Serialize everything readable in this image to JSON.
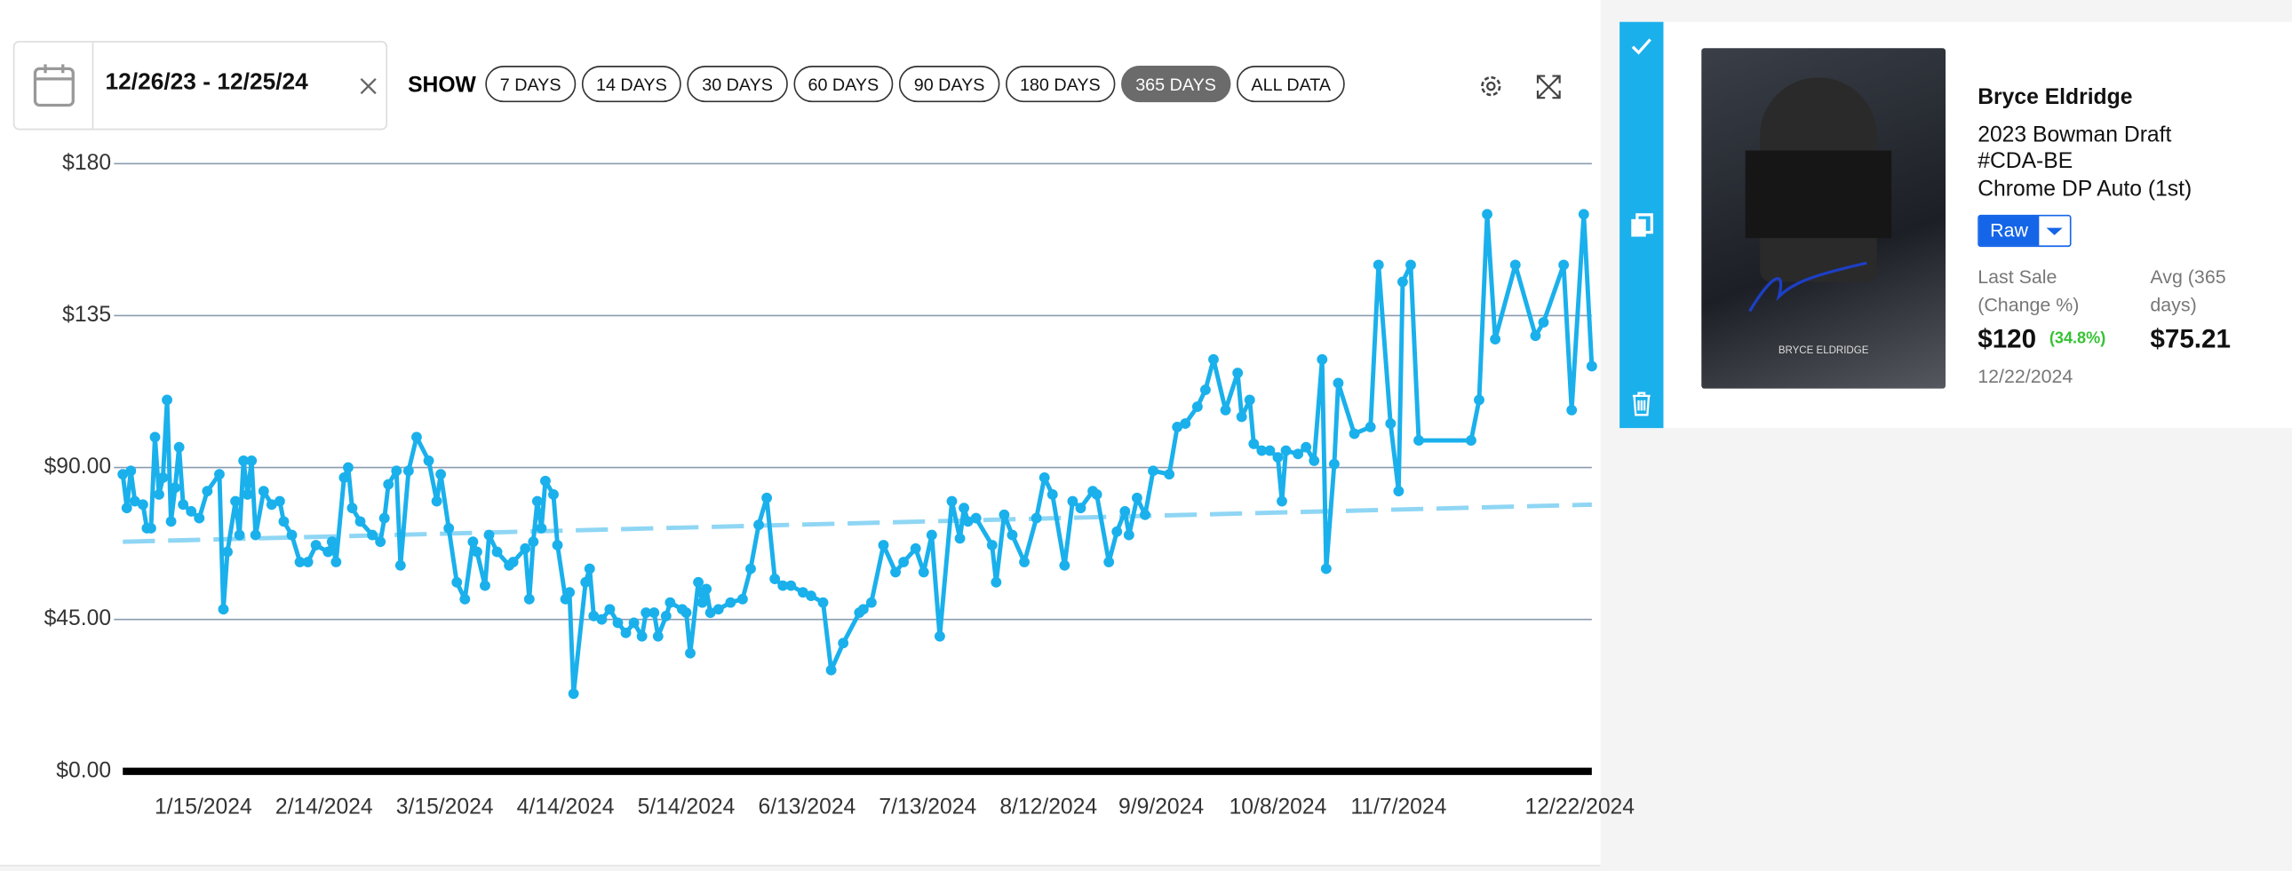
{
  "toolbar": {
    "date_range": "12/26/23 - 12/25/24",
    "show_label": "SHOW",
    "ranges": [
      "7 DAYS",
      "14 DAYS",
      "30 DAYS",
      "60 DAYS",
      "90 DAYS",
      "180 DAYS",
      "365 DAYS",
      "ALL DATA"
    ],
    "active_range": 6
  },
  "chart_data": {
    "type": "line",
    "xlim": [
      "12/26/2023",
      "12/25/2024"
    ],
    "xticks": [
      "1/15/2024",
      "2/14/2024",
      "3/15/2024",
      "4/14/2024",
      "5/14/2024",
      "6/13/2024",
      "7/13/2024",
      "8/12/2024",
      "9/9/2024",
      "10/8/2024",
      "11/7/2024",
      "12/22/2024"
    ],
    "ylim": [
      0,
      180
    ],
    "yticks": [
      {
        "value": 0,
        "label": "$0.00"
      },
      {
        "value": 45,
        "label": "$45.00"
      },
      {
        "value": 90,
        "label": "$90.00"
      },
      {
        "value": 135,
        "label": "$135"
      },
      {
        "value": 180,
        "label": "$180"
      }
    ],
    "grid": true,
    "x": [
      "12/26/2023",
      "12/27/2023",
      "12/28/2023",
      "12/29/2023",
      "12/31/2023",
      "1/1/2024",
      "1/2/2024",
      "1/3/2024",
      "1/4/2024",
      "1/5/2024",
      "1/6/2024",
      "1/7/2024",
      "1/8/2024",
      "1/9/2024",
      "1/10/2024",
      "1/12/2024",
      "1/14/2024",
      "1/16/2024",
      "1/19/2024",
      "1/20/2024",
      "1/21/2024",
      "1/23/2024",
      "1/24/2024",
      "1/25/2024",
      "1/26/2024",
      "1/27/2024",
      "1/28/2024",
      "1/30/2024",
      "2/1/2024",
      "2/3/2024",
      "2/4/2024",
      "2/6/2024",
      "2/8/2024",
      "2/10/2024",
      "2/12/2024",
      "2/15/2024",
      "2/16/2024",
      "2/17/2024",
      "2/19/2024",
      "2/20/2024",
      "2/21/2024",
      "2/23/2024",
      "2/26/2024",
      "2/28/2024",
      "2/29/2024",
      "3/1/2024",
      "3/3/2024",
      "3/4/2024",
      "3/6/2024",
      "3/8/2024",
      "3/11/2024",
      "3/13/2024",
      "3/14/2024",
      "3/16/2024",
      "3/18/2024",
      "3/20/2024",
      "3/22/2024",
      "3/23/2024",
      "3/25/2024",
      "3/26/2024",
      "3/28/2024",
      "3/31/2024",
      "4/1/2024",
      "4/4/2024",
      "4/5/2024",
      "4/6/2024",
      "4/7/2024",
      "4/8/2024",
      "4/9/2024",
      "4/11/2024",
      "4/12/2024",
      "4/14/2024",
      "4/15/2024",
      "4/16/2024",
      "4/19/2024",
      "4/20/2024",
      "4/21/2024",
      "4/23/2024",
      "4/25/2024",
      "4/27/2024",
      "4/29/2024",
      "5/1/2024",
      "5/3/2024",
      "5/4/2024",
      "5/6/2024",
      "5/7/2024",
      "5/9/2024",
      "5/10/2024",
      "5/13/2024",
      "5/14/2024",
      "5/15/2024",
      "5/17/2024",
      "5/18/2024",
      "5/19/2024",
      "5/20/2024",
      "5/22/2024",
      "5/25/2024",
      "5/28/2024",
      "5/30/2024",
      "6/1/2024",
      "6/3/2024",
      "6/5/2024",
      "6/7/2024",
      "6/9/2024",
      "6/12/2024",
      "6/14/2024",
      "6/17/2024",
      "6/19/2024",
      "6/22/2024",
      "6/26/2024",
      "6/27/2024",
      "6/29/2024",
      "7/2/2024",
      "7/5/2024",
      "7/7/2024",
      "7/10/2024",
      "7/12/2024",
      "7/14/2024",
      "7/16/2024",
      "7/19/2024",
      "7/21/2024",
      "7/22/2024",
      "7/23/2024",
      "7/25/2024",
      "7/29/2024",
      "7/30/2024",
      "8/1/2024",
      "8/3/2024",
      "8/6/2024",
      "8/9/2024",
      "8/11/2024",
      "8/13/2024",
      "8/16/2024",
      "8/18/2024",
      "8/20/2024",
      "8/23/2024",
      "8/24/2024",
      "8/27/2024",
      "8/29/2024",
      "8/31/2024",
      "9/1/2024",
      "9/3/2024",
      "9/5/2024",
      "9/7/2024",
      "9/11/2024",
      "9/13/2024",
      "9/15/2024",
      "9/18/2024",
      "9/20/2024",
      "9/22/2024",
      "9/25/2024",
      "9/28/2024",
      "9/29/2024",
      "10/1/2024",
      "10/2/2024",
      "10/4/2024",
      "10/6/2024",
      "10/8/2024",
      "10/9/2024",
      "10/10/2024",
      "10/13/2024",
      "10/15/2024",
      "10/17/2024",
      "10/19/2024",
      "10/20/2024",
      "10/22/2024",
      "10/23/2024",
      "10/27/2024",
      "10/31/2024",
      "11/2/2024",
      "11/5/2024",
      "11/7/2024",
      "11/8/2024",
      "11/10/2024",
      "11/12/2024",
      "11/25/2024",
      "11/27/2024",
      "11/29/2024",
      "12/1/2024",
      "12/6/2024",
      "12/11/2024",
      "12/13/2024",
      "12/18/2024",
      "12/20/2024",
      "12/23/2024",
      "12/25/2024"
    ],
    "series": [
      {
        "color": "#1ab0ec",
        "values": [
          88,
          78,
          89,
          80,
          79,
          72,
          72,
          99,
          82,
          87,
          110,
          74,
          84,
          96,
          79,
          77,
          75,
          83,
          88,
          48,
          65,
          80,
          70,
          92,
          82,
          92,
          70,
          83,
          79,
          80,
          74,
          70,
          62,
          62,
          67,
          65,
          68,
          62,
          87,
          90,
          78,
          74,
          70,
          68,
          75,
          85,
          89,
          61,
          89,
          99,
          92,
          80,
          88,
          72,
          56,
          51,
          68,
          65,
          55,
          70,
          65,
          61,
          62,
          66,
          51,
          68,
          80,
          72,
          86,
          82,
          67,
          51,
          53,
          23,
          56,
          60,
          46,
          45,
          48,
          44,
          41,
          44,
          40,
          47,
          47,
          40,
          46,
          50,
          48,
          47,
          35,
          56,
          50,
          54,
          47,
          48,
          50,
          51,
          60,
          73,
          81,
          57,
          55,
          55,
          53,
          52,
          50,
          30,
          38,
          47,
          48,
          50,
          67,
          59,
          62,
          66,
          59,
          70,
          40,
          80,
          69,
          78,
          74,
          75,
          67,
          56,
          76,
          70,
          62,
          75,
          87,
          82,
          61,
          80,
          78,
          83,
          82,
          62,
          71,
          77,
          70,
          81,
          76,
          89,
          88,
          102,
          103,
          108,
          113,
          122,
          107,
          118,
          105,
          110,
          97,
          95,
          95,
          93,
          80,
          95,
          94,
          96,
          92,
          122,
          60,
          91,
          115,
          100,
          102,
          150,
          103,
          83,
          145,
          150,
          98,
          98,
          110,
          165,
          128,
          150,
          129,
          133,
          150,
          107,
          165,
          120
        ]
      }
    ],
    "trendline": {
      "color": "#8fd6f4",
      "x": [
        "12/26/2023",
        "12/25/2024"
      ],
      "values": [
        68,
        79
      ]
    }
  },
  "card": {
    "image_name": "BRYCE ELDRIDGE",
    "player": "Bryce Eldridge",
    "set": "2023 Bowman Draft",
    "number": "#CDA-BE",
    "variant": "Chrome DP Auto (1st)",
    "grade": "Raw",
    "last_sale_label": "Last Sale (Change %)",
    "last_sale": "$120",
    "change": "(34.8%)",
    "avg_label": "Avg (365 days)",
    "avg": "$75.21",
    "date": "12/22/2024"
  }
}
